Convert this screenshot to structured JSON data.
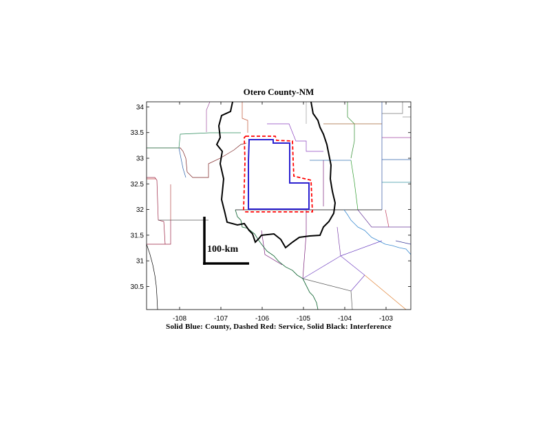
{
  "title": "Otero County-NM",
  "caption": "Solid Blue: County, Dashed Red: Service, Solid Black: Interference",
  "scale_bar_label": "100-km",
  "axes": {
    "x_range": [
      -108.8,
      -102.4
    ],
    "y_range": [
      30.05,
      34.1
    ],
    "x_ticks": [
      "-108",
      "-107",
      "-106",
      "-105",
      "-104",
      "-103"
    ],
    "x_tick_values": [
      -108,
      -107,
      -106,
      -105,
      -104,
      -103
    ],
    "y_ticks": [
      "34",
      "33.5",
      "33",
      "32.5",
      "32",
      "31.5",
      "31",
      "30.5"
    ],
    "y_tick_values": [
      34,
      33.5,
      33,
      32.5,
      32,
      31.5,
      31,
      30.5
    ]
  },
  "legend_colors": {
    "county": "#2a1fd0",
    "service": "#ff0000",
    "interference": "#000000"
  }
}
